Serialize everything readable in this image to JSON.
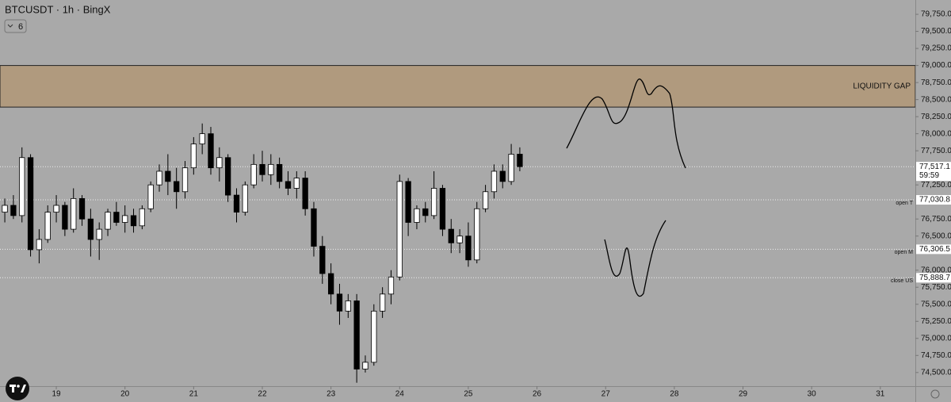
{
  "header": {
    "symbol": "BTCUSDT · 1h · BingX",
    "indicator_count": "6"
  },
  "chart_data": {
    "type": "candlestick",
    "x": [
      18.25,
      18.375,
      18.5,
      18.625,
      18.75,
      18.875,
      19,
      19.125,
      19.25,
      19.375,
      19.5,
      19.625,
      19.75,
      19.875,
      20,
      20.125,
      20.25,
      20.375,
      20.5,
      20.625,
      20.75,
      20.875,
      21,
      21.125,
      21.25,
      21.375,
      21.5,
      21.625,
      21.75,
      21.875,
      22,
      22.125,
      22.25,
      22.375,
      22.5,
      22.625,
      22.75,
      22.875,
      23,
      23.125,
      23.25,
      23.375,
      23.5,
      23.625,
      23.75,
      23.875,
      24,
      24.125,
      24.25,
      24.375,
      24.5,
      24.625,
      24.75,
      24.875,
      25,
      25.125,
      25.25,
      25.375,
      25.5,
      25.625,
      25.75
    ],
    "open": [
      76850,
      76950,
      76800,
      77650,
      76300,
      76450,
      76850,
      76950,
      76600,
      77050,
      76750,
      76450,
      76600,
      76850,
      76700,
      76800,
      76650,
      76900,
      77250,
      77450,
      77300,
      77150,
      77500,
      77850,
      78000,
      77500,
      77650,
      77100,
      76850,
      77250,
      77550,
      77400,
      77550,
      77300,
      77200,
      77350,
      76900,
      76350,
      75950,
      75650,
      75400,
      75550,
      74550,
      74650,
      75400,
      75650,
      75900,
      77300,
      76700,
      76900,
      76800,
      77200,
      76600,
      76400,
      76500,
      76150,
      76900,
      77150,
      77450,
      77300,
      77700
    ],
    "high": [
      77050,
      77100,
      77800,
      77700,
      76600,
      76950,
      77100,
      77000,
      77200,
      77100,
      76900,
      76700,
      76900,
      77000,
      76950,
      76900,
      76950,
      77300,
      77550,
      77700,
      77500,
      77600,
      77950,
      78150,
      78100,
      77800,
      77700,
      77200,
      77300,
      77700,
      77750,
      77700,
      77650,
      77450,
      77450,
      77450,
      77000,
      76500,
      76100,
      75800,
      75650,
      75650,
      74750,
      75500,
      75750,
      76000,
      77400,
      77350,
      76950,
      77000,
      77450,
      77250,
      76750,
      76600,
      76700,
      77000,
      77250,
      77550,
      77550,
      77850,
      77800
    ],
    "low": [
      76700,
      76750,
      76700,
      76200,
      76100,
      76400,
      76700,
      76500,
      76550,
      76650,
      76200,
      76150,
      76500,
      76650,
      76550,
      76550,
      76600,
      76850,
      77150,
      77100,
      76900,
      77050,
      77400,
      77700,
      77400,
      77300,
      77000,
      76700,
      76800,
      77200,
      77300,
      77250,
      77200,
      77100,
      77050,
      76800,
      76200,
      75800,
      75500,
      75200,
      75300,
      74350,
      74500,
      74600,
      75300,
      75500,
      75850,
      76500,
      76600,
      76700,
      76750,
      76500,
      76250,
      76250,
      76050,
      76100,
      76850,
      77050,
      77200,
      77250,
      77450
    ],
    "close": [
      76950,
      76800,
      77650,
      76300,
      76450,
      76850,
      76950,
      76600,
      77050,
      76750,
      76450,
      76600,
      76850,
      76700,
      76800,
      76650,
      76900,
      77250,
      77450,
      77300,
      77150,
      77500,
      77850,
      78000,
      77500,
      77650,
      77100,
      76850,
      77250,
      77550,
      77400,
      77550,
      77300,
      77200,
      77350,
      76900,
      76350,
      75950,
      75650,
      75400,
      75550,
      74550,
      74650,
      75400,
      75650,
      75900,
      77300,
      76700,
      76900,
      76800,
      77200,
      76600,
      76400,
      76500,
      76150,
      76900,
      77150,
      77450,
      77300,
      77700,
      77517.1
    ],
    "up_color": "#ffffff",
    "down_color": "#000000",
    "xlim": [
      18.18,
      31.51
    ],
    "xticks": [
      19,
      20,
      21,
      22,
      23,
      24,
      25,
      26,
      27,
      28,
      29,
      30,
      31
    ],
    "ylim": [
      74300,
      79960
    ],
    "yticks": [
      {
        "value": 79750,
        "label": "79,750.0"
      },
      {
        "value": 79500,
        "label": "79,500.0"
      },
      {
        "value": 79250,
        "label": "79,250.0"
      },
      {
        "value": 79000,
        "label": "79,000.0"
      },
      {
        "value": 78750,
        "label": "78,750.0"
      },
      {
        "value": 78500,
        "label": "78,500.0"
      },
      {
        "value": 78250,
        "label": "78,250.0"
      },
      {
        "value": 78000,
        "label": "78,000.0"
      },
      {
        "value": 77750,
        "label": "77,750.0"
      },
      {
        "value": 77250,
        "label": "77,250.0"
      },
      {
        "value": 76750,
        "label": "76,750.0"
      },
      {
        "value": 76500,
        "label": "76,500.0"
      },
      {
        "value": 76000,
        "label": "76,000.0"
      },
      {
        "value": 75750,
        "label": "75,750.0"
      },
      {
        "value": 75500,
        "label": "75,500.0"
      },
      {
        "value": 75250,
        "label": "75,250.0"
      },
      {
        "value": 75000,
        "label": "75,000.0"
      },
      {
        "value": 74750,
        "label": "74,750.0"
      },
      {
        "value": 74500,
        "label": "74,500.0"
      }
    ],
    "zone": {
      "label": "LIQUIDITY GAP",
      "from": 78390,
      "to": 79000,
      "color": "#b09a7e"
    },
    "levels": [
      {
        "name": "open T",
        "value": 77030.8,
        "label": "77,030.8"
      },
      {
        "name": "open M",
        "value": 76306.5,
        "label": "76,306.5"
      },
      {
        "name": "close US",
        "value": 75888.7,
        "label": "75,888.7"
      }
    ],
    "last_price": {
      "value": 77517.1,
      "label": "77,517.1",
      "countdown": "59:59"
    }
  }
}
